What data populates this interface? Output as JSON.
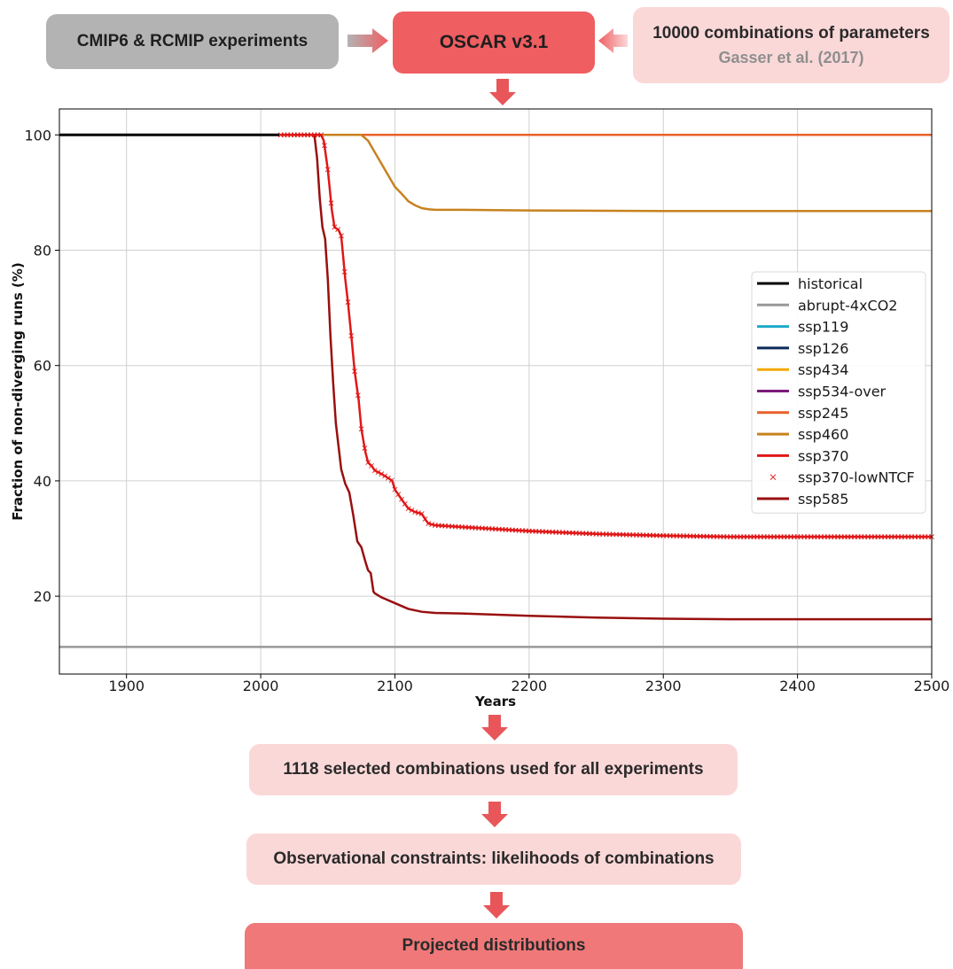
{
  "flow": {
    "cmip_label": "CMIP6 & RCMIP experiments",
    "oscar_label": "OSCAR v3.1",
    "params_label": "10000 combinations of parameters",
    "params_ref": "Gasser et al. (2017)",
    "selected_label": "1118 selected combinations used for all experiments",
    "obs_label": "Observational constraints: likelihoods of combinations",
    "proj_label": "Projected distributions",
    "colors": {
      "gray": "#b3b3b3",
      "red": "#ef5e61",
      "pink": "#fbd8d8",
      "arrow": "#e8565a"
    }
  },
  "chart_data": {
    "type": "line",
    "title": "",
    "xlabel": "Years",
    "ylabel": "Fraction of non-diverging runs (%)",
    "xlim": [
      1850,
      2500
    ],
    "ylim": [
      6.5,
      104.5
    ],
    "xticks": [
      1900,
      2000,
      2100,
      2200,
      2300,
      2400,
      2500
    ],
    "yticks": [
      20,
      40,
      60,
      80,
      100
    ],
    "grid": true,
    "legend_position": "right",
    "series": [
      {
        "name": "historical",
        "color": "#000000",
        "style": "line",
        "x": [
          1850,
          2014
        ],
        "y": [
          100,
          100
        ]
      },
      {
        "name": "abrupt-4xCO2",
        "color": "#999999",
        "style": "line",
        "x": [
          1850,
          2500
        ],
        "y": [
          11.2,
          11.2
        ]
      },
      {
        "name": "ssp119",
        "color": "#1fa9c9",
        "style": "line",
        "x": [
          2015,
          2500
        ],
        "y": [
          100,
          100
        ]
      },
      {
        "name": "ssp126",
        "color": "#0d2b5a",
        "style": "line",
        "x": [
          2015,
          2500
        ],
        "y": [
          100,
          100
        ]
      },
      {
        "name": "ssp434",
        "color": "#f5a800",
        "style": "line",
        "x": [
          2015,
          2500
        ],
        "y": [
          100,
          100
        ]
      },
      {
        "name": "ssp534-over",
        "color": "#7b1a7b",
        "style": "line",
        "x": [
          2015,
          2500
        ],
        "y": [
          100,
          100
        ]
      },
      {
        "name": "ssp245",
        "color": "#e8602c",
        "style": "line",
        "x": [
          2015,
          2500
        ],
        "y": [
          100,
          100
        ]
      },
      {
        "name": "ssp460",
        "color": "#c7821f",
        "style": "line",
        "x": [
          2015,
          2075,
          2080,
          2085,
          2090,
          2095,
          2100,
          2105,
          2110,
          2115,
          2120,
          2125,
          2130,
          2150,
          2200,
          2300,
          2400,
          2500
        ],
        "y": [
          100,
          100,
          99,
          97,
          95,
          93,
          91,
          89.8,
          88.5,
          87.8,
          87.3,
          87.1,
          87.0,
          87.0,
          86.9,
          86.8,
          86.8,
          86.8
        ]
      },
      {
        "name": "ssp370",
        "color": "#e01818",
        "style": "line",
        "x": [
          2015,
          2045,
          2047,
          2050,
          2053,
          2055,
          2058,
          2060,
          2063,
          2065,
          2068,
          2070,
          2073,
          2075,
          2078,
          2080,
          2083,
          2085,
          2090,
          2095,
          2098,
          2100,
          2105,
          2110,
          2115,
          2120,
          2123,
          2125,
          2130,
          2150,
          2200,
          2250,
          2300,
          2350,
          2400,
          2500
        ],
        "y": [
          100,
          100,
          99,
          94,
          87,
          84,
          83.5,
          82.5,
          75,
          71,
          64,
          59,
          54,
          49,
          45,
          43.2,
          42.5,
          41.8,
          41.2,
          40.5,
          40,
          38.5,
          36.8,
          35.2,
          34.6,
          34.3,
          33.2,
          32.6,
          32.3,
          32.0,
          31.3,
          30.8,
          30.5,
          30.3,
          30.3,
          30.3
        ]
      },
      {
        "name": "ssp370-lowNTCF",
        "color": "#e01818",
        "style": "x",
        "x": [
          2015,
          2045,
          2047,
          2050,
          2053,
          2055,
          2058,
          2060,
          2063,
          2065,
          2068,
          2070,
          2073,
          2075,
          2078,
          2080,
          2083,
          2085,
          2090,
          2095,
          2098,
          2100,
          2105,
          2110,
          2115,
          2120,
          2123,
          2125,
          2130,
          2150,
          2200,
          2250,
          2300,
          2350,
          2400,
          2500
        ],
        "y": [
          100,
          100,
          99,
          94,
          87,
          84,
          83.5,
          82.5,
          75,
          71,
          64,
          59,
          54,
          49,
          45,
          43.2,
          42.5,
          41.8,
          41.2,
          40.5,
          40,
          38.5,
          36.8,
          35.2,
          34.6,
          34.3,
          33.2,
          32.6,
          32.3,
          32.0,
          31.3,
          30.8,
          30.5,
          30.3,
          30.3,
          30.3
        ]
      },
      {
        "name": "ssp585",
        "color": "#990f0f",
        "style": "line",
        "x": [
          2015,
          2040,
          2042,
          2044,
          2046,
          2048,
          2050,
          2052,
          2054,
          2056,
          2058,
          2060,
          2063,
          2066,
          2069,
          2072,
          2075,
          2078,
          2080,
          2082,
          2084,
          2085,
          2090,
          2100,
          2110,
          2120,
          2130,
          2150,
          2200,
          2250,
          2300,
          2350,
          2400,
          2500
        ],
        "y": [
          100,
          100,
          96,
          89,
          84,
          82,
          75,
          65,
          57,
          50,
          46,
          42,
          39.5,
          38,
          34,
          29.5,
          28.5,
          26,
          24.5,
          24,
          20.8,
          20.5,
          19.8,
          18.8,
          17.8,
          17.3,
          17.1,
          17.0,
          16.6,
          16.3,
          16.1,
          16.0,
          16.0,
          16.0
        ]
      }
    ]
  }
}
